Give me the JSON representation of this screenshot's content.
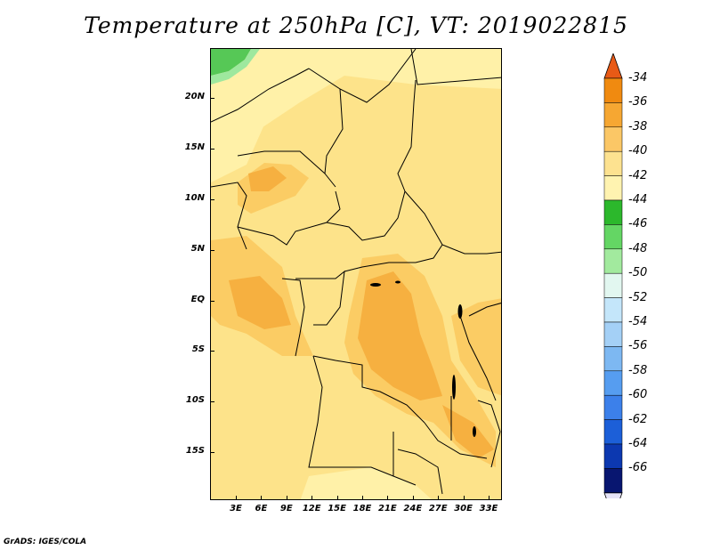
{
  "title": "Temperature at 250hPa [C], VT: 2019022815",
  "credit": "GrADS: IGES/COLA",
  "map": {
    "lat_labels": [
      "20N",
      "15N",
      "10N",
      "5N",
      "EQ",
      "5S",
      "10S",
      "15S"
    ],
    "lon_labels": [
      "3E",
      "6E",
      "9E",
      "12E",
      "15E",
      "18E",
      "21E",
      "24E",
      "27E",
      "30E",
      "33E"
    ],
    "colors": {
      "light_yellow": "#fff1a8",
      "yellow": "#fde38a",
      "gold": "#fbcc64",
      "orange": "#f6b040",
      "green": "#56c856",
      "light_green": "#9ee89e",
      "border": "#000000"
    }
  },
  "colorbar": {
    "labels": [
      "-34",
      "-36",
      "-38",
      "-40",
      "-42",
      "-44",
      "-46",
      "-48",
      "-50",
      "-52",
      "-54",
      "-56",
      "-58",
      "-60",
      "-62",
      "-64",
      "-66"
    ],
    "colors": [
      "#e85a16",
      "#f08a10",
      "#f6a732",
      "#fbc766",
      "#fde290",
      "#fff3b0",
      "#2cb82c",
      "#64d664",
      "#a2ea9e",
      "#e2f7f0",
      "#c4e6fa",
      "#a4d0f6",
      "#7db8f2",
      "#569df0",
      "#3c80ea",
      "#1c5fd8",
      "#0c38b0",
      "#081670",
      "#e6e4f8"
    ]
  }
}
